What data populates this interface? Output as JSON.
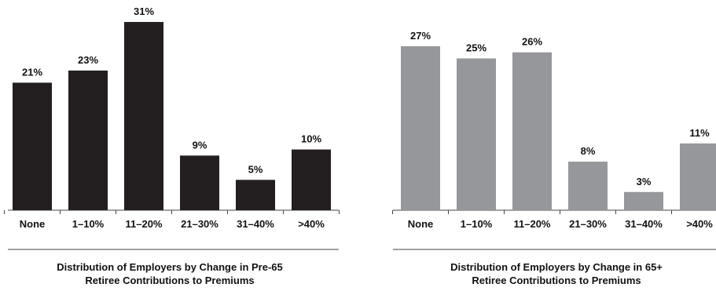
{
  "chart_data": [
    {
      "type": "bar",
      "title_lines": [
        "Distribution of Employers by Change in Pre-65",
        "Retiree Contributions to Premiums"
      ],
      "categories": [
        "None",
        "1–10%",
        "11–20%",
        "21–30%",
        "31–40%",
        ">40%"
      ],
      "values": [
        21,
        23,
        31,
        9,
        5,
        10
      ],
      "value_labels": [
        "21%",
        "23%",
        "31%",
        "9%",
        "5%",
        "10%"
      ],
      "ylim": [
        0,
        31
      ],
      "color": "#231f20"
    },
    {
      "type": "bar",
      "title_lines": [
        "Distribution of Employers by Change in 65+",
        "Retiree Contributions to Premiums"
      ],
      "categories": [
        "None",
        "1–10%",
        "11–20%",
        "21–30%",
        "31–40%",
        ">40%"
      ],
      "values": [
        27,
        25,
        26,
        8,
        3,
        11
      ],
      "value_labels": [
        "27%",
        "25%",
        "26%",
        "8%",
        "3%",
        "11%"
      ],
      "ylim": [
        0,
        31
      ],
      "color": "#96979a"
    }
  ]
}
